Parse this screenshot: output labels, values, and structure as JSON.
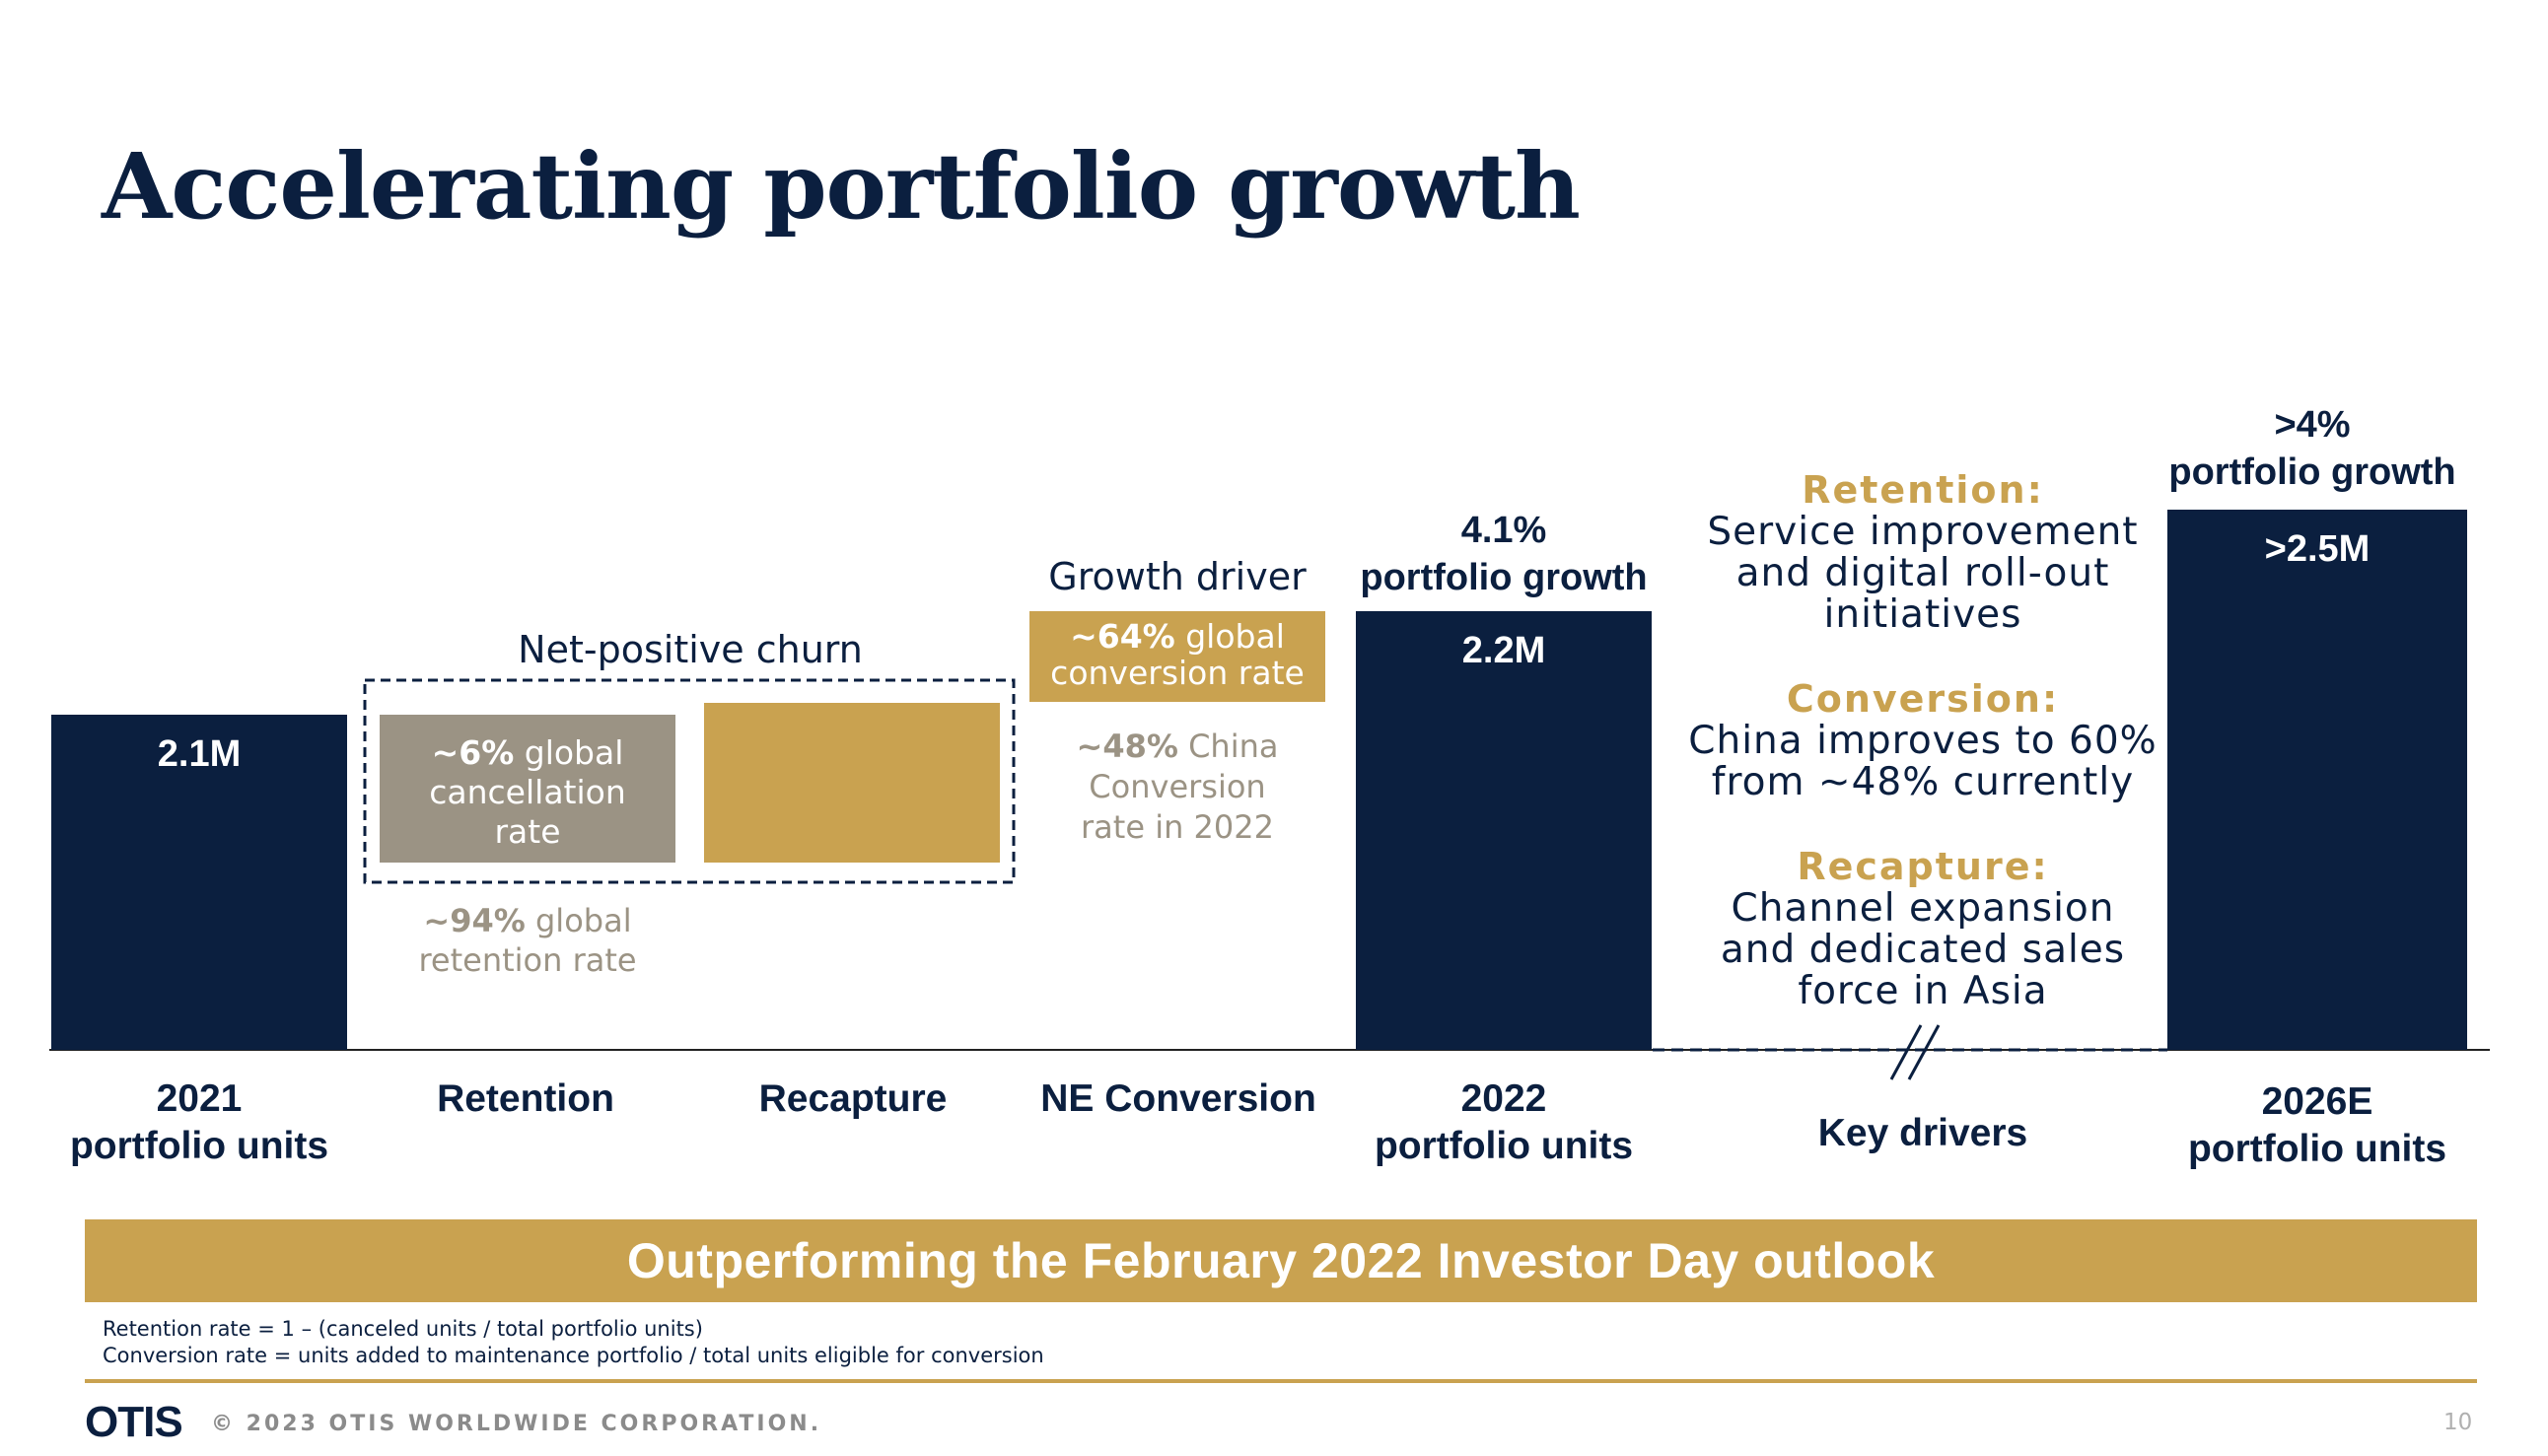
{
  "slide": {
    "title": "Accelerating portfolio growth",
    "banner": "Outperforming the February 2022 Investor Day outlook",
    "footnotes": [
      "Retention rate = 1 – (canceled units / total portfolio units)",
      "Conversion rate = units added to maintenance portfolio / total units eligible for conversion"
    ],
    "logo": "OTIS",
    "copyright": "© 2023 OTIS WORLDWIDE CORPORATION.",
    "page_number": "10"
  },
  "colors": {
    "navy": "#0b1f3f",
    "gold": "#c9a250",
    "gray": "#9b9384",
    "white": "#ffffff"
  },
  "chart_data": {
    "type": "bar",
    "subtype": "waterfall",
    "categories": [
      [
        "2021",
        "portfolio units"
      ],
      [
        "Retention"
      ],
      [
        "Recapture"
      ],
      [
        "NE Conversion"
      ],
      [
        "2022",
        "portfolio units"
      ],
      [
        "Key drivers"
      ],
      [
        "2026E",
        "portfolio units"
      ]
    ],
    "bars": [
      {
        "label": "2.1M",
        "value": 2.1,
        "kind": "total",
        "color": "#0b1f3f"
      },
      {
        "label": "",
        "value": -0.13,
        "kind": "decrease",
        "color": "#9b9384"
      },
      {
        "label": "",
        "value": 0.13,
        "kind": "increase",
        "color": "#c9a250"
      },
      {
        "label": "",
        "value": 0.1,
        "kind": "increase",
        "color": "#c9a250"
      },
      {
        "label": "2.2M",
        "value": 2.2,
        "kind": "total",
        "color": "#0b1f3f"
      },
      {
        "label": "",
        "value": null,
        "kind": "break",
        "color": ""
      },
      {
        "label": ">2.5M",
        "value": 2.5,
        "kind": "total",
        "color": "#0b1f3f"
      }
    ],
    "annotations": {
      "net_churn": "Net-positive churn",
      "growth_driver": "Growth driver",
      "cancellation": [
        [
          "~6%",
          " global"
        ],
        [
          "cancellation"
        ],
        [
          "rate"
        ]
      ],
      "retention": [
        [
          "~94%",
          " global"
        ],
        [
          "retention rate"
        ]
      ],
      "conversion_global": [
        [
          "~64%",
          " global"
        ],
        [
          "conversion rate"
        ]
      ],
      "china": [
        [
          "~48%",
          " China"
        ],
        [
          "Conversion"
        ],
        [
          "rate in 2022"
        ]
      ],
      "growth_2022": [
        "4.1%",
        "portfolio growth"
      ],
      "growth_2026": [
        ">4%",
        "portfolio growth"
      ]
    },
    "key_drivers": [
      {
        "heading": "Retention:",
        "lines": [
          "Service improvement",
          "and digital roll-out",
          "initiatives"
        ]
      },
      {
        "heading": "Conversion:",
        "lines": [
          "China improves to 60%",
          "from ~48% currently"
        ]
      },
      {
        "heading": "Recapture:",
        "lines": [
          "Channel expansion",
          "and dedicated sales",
          "force in Asia"
        ]
      }
    ]
  }
}
